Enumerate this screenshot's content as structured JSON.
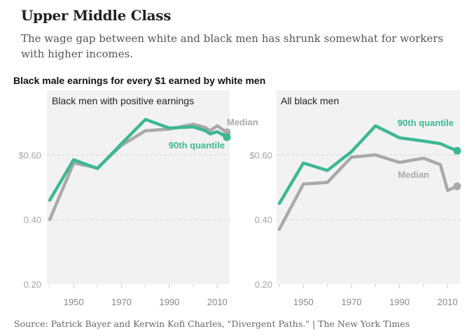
{
  "title": "Upper Middle Class",
  "subtitle": "The wage gap between white and black men has shrunk somewhat for workers with higher incomes.",
  "panel_heading": "Black male earnings for every $1 earned by white men",
  "source": "Source: Patrick Bayer and Kerwin Kofi Charles, \"Divergent Paths.\" | The New York Times",
  "colors": {
    "quantile90": "#3db892",
    "median": "#a9a9a9",
    "panel_bg": "#f2f2f2",
    "grid": "#d7d7d7"
  },
  "chart_data": [
    {
      "type": "line",
      "title": "Black men with positive earnings",
      "xlim": [
        1940,
        2014
      ],
      "ylim": [
        0.2,
        0.8
      ],
      "ytick_labels": [
        "$0.60",
        "0.40",
        "0.20"
      ],
      "yticks": [
        0.6,
        0.4,
        0.2
      ],
      "xticks": [
        1950,
        1970,
        1990,
        2010
      ],
      "xtick_labels": [
        "1950",
        "1970",
        "1990",
        "2010"
      ],
      "series": [
        {
          "name": "Median",
          "color": "#a9a9a9",
          "x": [
            1940,
            1950,
            1960,
            1970,
            1980,
            1990,
            2000,
            2005,
            2007,
            2010,
            2014
          ],
          "y": [
            0.4,
            0.575,
            0.56,
            0.63,
            0.675,
            0.68,
            0.695,
            0.685,
            0.675,
            0.69,
            0.67
          ]
        },
        {
          "name": "90th quantile",
          "color": "#3db892",
          "x": [
            1940,
            1950,
            1960,
            1970,
            1980,
            1990,
            2000,
            2005,
            2007,
            2010,
            2014
          ],
          "y": [
            0.46,
            0.585,
            0.558,
            0.635,
            0.71,
            0.683,
            0.687,
            0.675,
            0.665,
            0.672,
            0.655
          ]
        }
      ]
    },
    {
      "type": "line",
      "title": "All black men",
      "xlim": [
        1940,
        2014
      ],
      "ylim": [
        0.2,
        0.8
      ],
      "ytick_labels": [
        "$0.60",
        "0.40",
        "0.20"
      ],
      "yticks": [
        0.6,
        0.4,
        0.2
      ],
      "xticks": [
        1950,
        1970,
        1990,
        2010
      ],
      "xtick_labels": [
        "1950",
        "1970",
        "1990",
        "2010"
      ],
      "series": [
        {
          "name": "90th quantile",
          "color": "#3db892",
          "x": [
            1940,
            1950,
            1960,
            1970,
            1980,
            1990,
            2000,
            2007,
            2010,
            2014
          ],
          "y": [
            0.45,
            0.575,
            0.552,
            0.61,
            0.69,
            0.653,
            0.643,
            0.635,
            0.625,
            0.613
          ]
        },
        {
          "name": "Median",
          "color": "#a9a9a9",
          "x": [
            1940,
            1950,
            1960,
            1970,
            1980,
            1990,
            2000,
            2007,
            2010,
            2014
          ],
          "y": [
            0.37,
            0.51,
            0.515,
            0.593,
            0.6,
            0.577,
            0.59,
            0.57,
            0.49,
            0.503
          ]
        }
      ]
    }
  ]
}
